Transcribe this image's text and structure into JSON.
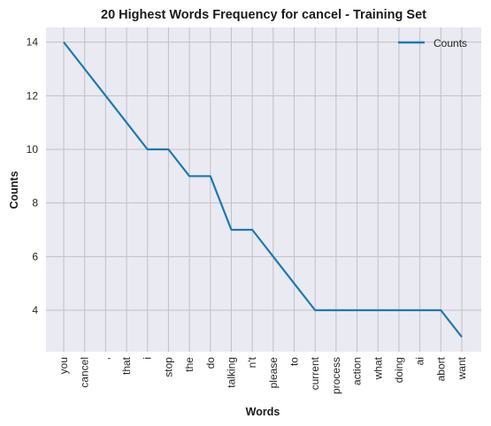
{
  "chart_data": {
    "type": "line",
    "title": "20 Highest Words Frequency for cancel - Training Set",
    "xlabel": "Words",
    "ylabel": "Counts",
    "categories": [
      "you",
      "cancel",
      ",",
      "that",
      "i",
      "stop",
      "the",
      "do",
      "talking",
      "n't",
      "please",
      "to",
      "current",
      "process",
      "action",
      "what",
      "doing",
      "ai",
      "abort",
      "want"
    ],
    "series": [
      {
        "name": "Counts",
        "values": [
          14,
          13,
          12,
          11,
          10,
          10,
          9,
          9,
          7,
          7,
          6,
          5,
          4,
          4,
          4,
          4,
          4,
          4,
          4,
          3
        ]
      }
    ],
    "yticks": [
      4,
      6,
      8,
      10,
      12,
      14
    ],
    "ylim": [
      2.45,
      14.55
    ],
    "grid": true,
    "legend": "top-right",
    "colors": {
      "line": "#1f77b4",
      "plot_bg": "#eaeaf2",
      "grid": "#c0c0c4"
    }
  }
}
